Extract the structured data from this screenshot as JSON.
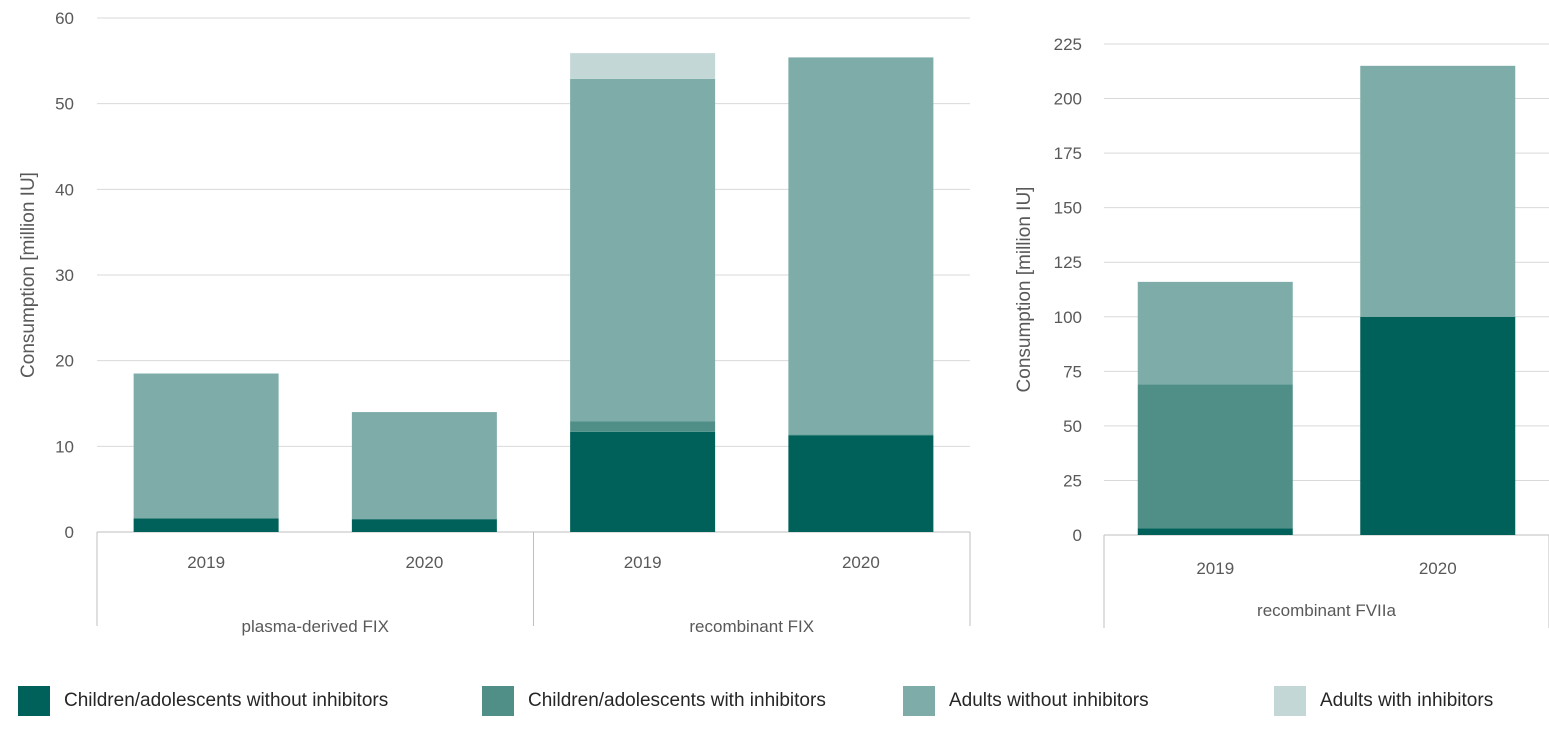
{
  "colors": {
    "children_without": "#00605a",
    "children_with": "#4f8f88",
    "adults_without": "#7eada9",
    "adults_with": "#c2d7d6",
    "grid": "#d9d9d9",
    "axis": "#bfbfbf",
    "text": "#595959"
  },
  "legend": [
    {
      "key": "children_without",
      "label": "Children/adolescents without inhibitors"
    },
    {
      "key": "children_with",
      "label": "Children/adolescents with inhibitors"
    },
    {
      "key": "adults_without",
      "label": "Adults without inhibitors"
    },
    {
      "key": "adults_with",
      "label": "Adults with inhibitors"
    }
  ],
  "chart_data": [
    {
      "type": "bar",
      "stacked": true,
      "ylabel": "Consumption [million IU]",
      "ylim": [
        0,
        60
      ],
      "yticks": [
        0,
        10,
        20,
        30,
        40,
        50,
        60
      ],
      "grid": true,
      "groups": [
        {
          "label": "plasma-derived FIX",
          "categories": [
            "2019",
            "2020"
          ]
        },
        {
          "label": "recombinant FIX",
          "categories": [
            "2019",
            "2020"
          ]
        }
      ],
      "categories": [
        "2019",
        "2020",
        "2019",
        "2020"
      ],
      "series": [
        {
          "key": "children_without",
          "name": "Children/adolescents without inhibitors",
          "values": [
            1.6,
            1.5,
            11.7,
            11.3
          ]
        },
        {
          "key": "children_with",
          "name": "Children/adolescents with inhibitors",
          "values": [
            0,
            0,
            1.2,
            0.1
          ]
        },
        {
          "key": "adults_without",
          "name": "Adults without inhibitors",
          "values": [
            16.9,
            12.5,
            40.0,
            44.0
          ]
        },
        {
          "key": "adults_with",
          "name": "Adults with inhibitors",
          "values": [
            0,
            0,
            3.0,
            0
          ]
        }
      ]
    },
    {
      "type": "bar",
      "stacked": true,
      "ylabel": "Consumption [million IU]",
      "ylim": [
        0,
        225
      ],
      "yticks": [
        0,
        25,
        50,
        75,
        100,
        125,
        150,
        175,
        200,
        225
      ],
      "grid": true,
      "groups": [
        {
          "label": "recombinant FVIIa",
          "categories": [
            "2019",
            "2020"
          ]
        }
      ],
      "categories": [
        "2019",
        "2020"
      ],
      "series": [
        {
          "key": "children_without",
          "name": "Children/adolescents without inhibitors",
          "values": [
            3,
            100
          ]
        },
        {
          "key": "children_with",
          "name": "Children/adolescents with inhibitors",
          "values": [
            66,
            0
          ]
        },
        {
          "key": "adults_without",
          "name": "Adults without inhibitors",
          "values": [
            47,
            115
          ]
        },
        {
          "key": "adults_with",
          "name": "Adults with inhibitors",
          "values": [
            0,
            0
          ]
        }
      ]
    }
  ]
}
